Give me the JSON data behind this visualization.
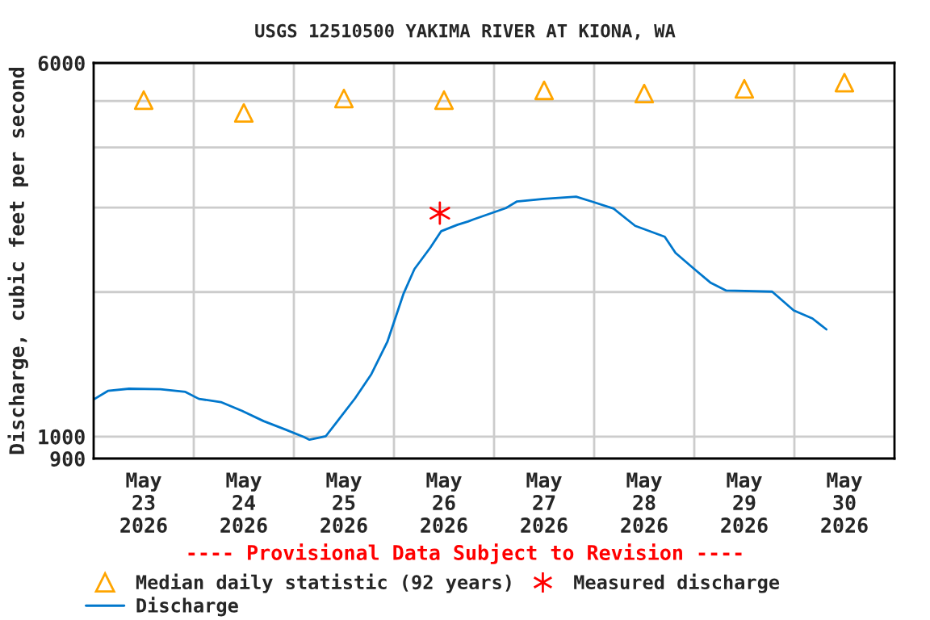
{
  "chart_data": {
    "type": "line",
    "title": "USGS 12510500 YAKIMA RIVER AT KIONA, WA",
    "ylabel": "Discharge, cubic feet per second",
    "log": "y",
    "grid": true,
    "legend": "bottom",
    "xlim": [
      "2026-05-23T00:00",
      "2026-05-31T00:00"
    ],
    "xticks": [
      {
        "value": "2026-05-23T12:00",
        "label": "May\n23\n2026"
      },
      {
        "value": "2026-05-24T12:00",
        "label": "May\n24\n2026"
      },
      {
        "value": "2026-05-25T12:00",
        "label": "May\n25\n2026"
      },
      {
        "value": "2026-05-26T12:00",
        "label": "May\n26\n2026"
      },
      {
        "value": "2026-05-27T12:00",
        "label": "May\n27\n2026"
      },
      {
        "value": "2026-05-28T12:00",
        "label": "May\n28\n2026"
      },
      {
        "value": "2026-05-29T12:00",
        "label": "May\n29\n2026"
      },
      {
        "value": "2026-05-30T12:00",
        "label": "May\n30\n2026"
      },
      {
        "value": "2026-05-24T00:00",
        "label": null
      },
      {
        "value": "2026-05-25T00:00",
        "label": null
      },
      {
        "value": "2026-05-26T00:00",
        "label": null
      },
      {
        "value": "2026-05-27T00:00",
        "label": null
      },
      {
        "value": "2026-05-28T00:00",
        "label": null
      },
      {
        "value": "2026-05-29T00:00",
        "label": null
      },
      {
        "value": "2026-05-30T00:00",
        "label": null
      }
    ],
    "ylim": [
      900,
      6000
    ],
    "yticks": [
      900,
      1000,
      {
        "value": 2000,
        "label": null
      },
      {
        "value": 3000,
        "label": null
      },
      {
        "value": 4000,
        "label": null
      },
      {
        "value": 5000,
        "label": null
      },
      6000
    ],
    "annotations": [
      "---- Provisional Data Subject to Revision ----"
    ],
    "series": [
      {
        "name": "Median daily statistic (92 years)",
        "type": "scatter",
        "marker": "triangle",
        "color": "#ffa500",
        "x": [
          "2026-05-23T12:00",
          "2026-05-24T12:00",
          "2026-05-25T12:00",
          "2026-05-26T12:00",
          "2026-05-27T12:00",
          "2026-05-28T12:00",
          "2026-05-29T12:00",
          "2026-05-30T12:00"
        ],
        "values": [
          5020,
          4720,
          5060,
          5020,
          5260,
          5180,
          5300,
          5460
        ]
      },
      {
        "name": "Discharge",
        "marker": "none",
        "color": "#0077cc",
        "x": [
          "2026-05-23T00:00",
          "2026-05-23T03:25",
          "2026-05-23T08:30",
          "2026-05-23T16:00",
          "2026-05-23T22:00",
          "2026-05-24T01:15",
          "2026-05-24T06:30",
          "2026-05-24T11:30",
          "2026-05-24T16:45",
          "2026-05-24T22:00",
          "2026-05-25T02:30",
          "2026-05-25T03:45",
          "2026-05-25T07:40",
          "2026-05-25T10:10",
          "2026-05-25T14:40",
          "2026-05-25T18:35",
          "2026-05-25T22:25",
          "2026-05-26T02:20",
          "2026-05-26T04:55",
          "2026-05-26T08:45",
          "2026-05-26T11:20",
          "2026-05-26T15:15",
          "2026-05-26T17:45",
          "2026-05-26T19:05",
          "2026-05-27T02:50",
          "2026-05-27T05:25",
          "2026-05-27T11:55",
          "2026-05-27T19:40",
          "2026-05-27T23:30",
          "2026-05-28T04:40",
          "2026-05-28T09:50",
          "2026-05-28T16:55",
          "2026-05-28T19:30",
          "2026-05-29T00:00",
          "2026-05-29T03:50",
          "2026-05-29T07:40",
          "2026-05-29T18:40",
          "2026-05-29T23:50",
          "2026-05-30T04:20",
          "2026-05-30T07:40"
        ],
        "values": [
          1195,
          1245,
          1258,
          1255,
          1239,
          1198,
          1180,
          1132,
          1077,
          1034,
          997,
          985,
          1002,
          1069,
          1201,
          1349,
          1575,
          1988,
          2233,
          2477,
          2678,
          2762,
          2805,
          2834,
          2991,
          3086,
          3127,
          3159,
          3086,
          2984,
          2747,
          2608,
          2413,
          2233,
          2094,
          2014,
          2004,
          1831,
          1762,
          1672
        ]
      },
      {
        "name": "Measured discharge",
        "type": "scatter",
        "marker": "cross",
        "color": "#ff0000",
        "x": [
          "2026-05-26T11:00"
        ],
        "values": [
          2920
        ]
      }
    ]
  }
}
